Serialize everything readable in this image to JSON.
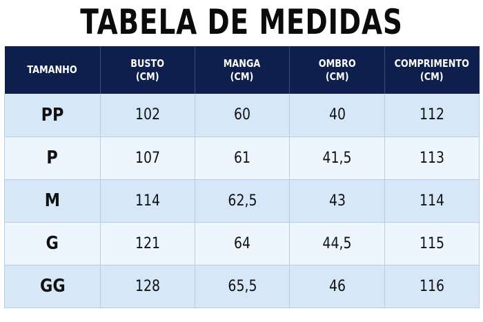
{
  "title": "TABELA DE MEDIDAS",
  "columns": [
    {
      "line1": "TAMANHO",
      "line2": ""
    },
    {
      "line1": "BUSTO",
      "line2": "(CM)"
    },
    {
      "line1": "MANGA",
      "line2": "(CM)"
    },
    {
      "line1": "OMBRO",
      "line2": "(CM)"
    },
    {
      "line1": "COMPRIMENTO",
      "line2": "(CM)"
    }
  ],
  "rows": [
    [
      "PP",
      "102",
      "60",
      "40",
      "112"
    ],
    [
      "P",
      "107",
      "61",
      "41,5",
      "113"
    ],
    [
      "M",
      "114",
      "62,5",
      "43",
      "114"
    ],
    [
      "G",
      "121",
      "64",
      "44,5",
      "115"
    ],
    [
      "GG",
      "128",
      "65,5",
      "46",
      "116"
    ]
  ],
  "colors": {
    "header_bg": "#0e1f4d",
    "header_text": "#ffffff",
    "row_odd": "#d6e8f8",
    "row_even": "#eef6fd",
    "title": "#0b0b0b"
  }
}
